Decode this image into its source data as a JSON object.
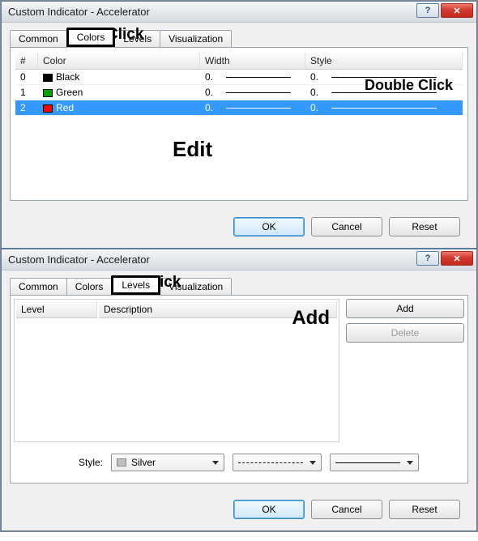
{
  "top": {
    "title": "Custom Indicator - Accelerator",
    "annot_click": "Click",
    "annot_edit": "Edit",
    "annot_double": "Double Click",
    "tabs": {
      "common": "Common",
      "colors": "Colors",
      "levels": "Levels",
      "visualization": "Visualization",
      "active": "colors"
    },
    "grid": {
      "headers": {
        "num": "#",
        "color": "Color",
        "width": "Width",
        "style": "Style"
      },
      "rows": [
        {
          "idx": "0",
          "name": "Black",
          "swatch": "#000000",
          "width_prefix": "0.",
          "style_prefix": "0.",
          "selected": false
        },
        {
          "idx": "1",
          "name": "Green",
          "swatch": "#00a000",
          "width_prefix": "0.",
          "style_prefix": "0.",
          "selected": false
        },
        {
          "idx": "2",
          "name": "Red",
          "swatch": "#ff0000",
          "width_prefix": "0.",
          "style_prefix": "0.",
          "selected": true
        }
      ]
    },
    "buttons": {
      "ok": "OK",
      "cancel": "Cancel",
      "reset": "Reset"
    }
  },
  "bottom": {
    "title": "Custom Indicator - Accelerator",
    "annot_click": "Click",
    "annot_add": "Add",
    "tabs": {
      "common": "Common",
      "colors": "Colors",
      "levels": "Levels",
      "visualization": "Visualization",
      "active": "levels"
    },
    "levels": {
      "headers": {
        "level": "Level",
        "description": "Description"
      },
      "add_label": "Add",
      "delete_label": "Delete",
      "style_label": "Style:",
      "style_color_name": "Silver",
      "style_color": "#c0c0c0",
      "dash_style": "dashed",
      "solid_style": "solid"
    },
    "buttons": {
      "ok": "OK",
      "cancel": "Cancel",
      "reset": "Reset"
    }
  },
  "window_controls": {
    "help": "?",
    "close": "✕"
  }
}
